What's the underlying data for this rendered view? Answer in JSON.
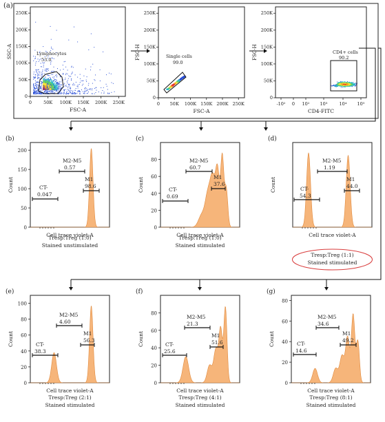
{
  "figure_label": "(a)",
  "colors": {
    "histogram_fill": "#f6b57a",
    "histogram_stroke": "#e0893c",
    "ellipse": "#d83a3a"
  },
  "chart_data": [
    {
      "id": "a1",
      "type": "scatter",
      "xlabel": "FSC-A",
      "ylabel": "SSC-A",
      "xticks": [
        "0",
        "50K",
        "100K",
        "150K",
        "200K",
        "250K"
      ],
      "yticks": [
        "0",
        "50K",
        "100K",
        "150K",
        "200K",
        "250K"
      ],
      "xlim": [
        0,
        270
      ],
      "ylim": [
        0,
        270
      ],
      "gate": {
        "name": "Lymphocytes",
        "value": "53.0"
      },
      "density_center": [
        35,
        30
      ]
    },
    {
      "id": "a2",
      "type": "scatter",
      "xlabel": "FSC-A",
      "ylabel": "FSC-H",
      "xticks": [
        "0",
        "50K",
        "100K",
        "150K",
        "200K",
        "250K"
      ],
      "yticks": [
        "0",
        "50K",
        "100K",
        "150K",
        "200K",
        "250K"
      ],
      "xlim": [
        0,
        270
      ],
      "ylim": [
        0,
        270
      ],
      "gate": {
        "name": "Single cells",
        "value": "99.0"
      }
    },
    {
      "id": "a3",
      "type": "scatter",
      "xlabel": "CD4-FITC",
      "ylabel": "FSC-H",
      "xticks": [
        "-10²",
        "0",
        "10²",
        "10³",
        "10⁴",
        "10⁵"
      ],
      "yticks": [
        "0",
        "50K",
        "100K",
        "150K",
        "200K",
        "250K"
      ],
      "gate": {
        "name": "CD4+ cells",
        "value": "90.2"
      }
    },
    {
      "id": "b",
      "panel": "(b)",
      "type": "area",
      "xlabel": "Cell trace violet-A",
      "ylabel": "Count",
      "yticks": [
        "0",
        "50",
        "100",
        "150",
        "200"
      ],
      "ylim": [
        0,
        220
      ],
      "peaks": [
        {
          "x": 0.77,
          "h": 205,
          "w": 0.022
        }
      ],
      "gates": [
        {
          "label": "CT-",
          "value": "0.047"
        },
        {
          "label": "M2-M5",
          "value": "0.57"
        },
        {
          "label": "M1",
          "value": "98.6"
        }
      ],
      "caption": [
        "Tresp:Treg (1:0)",
        "Stained unstimulated"
      ]
    },
    {
      "id": "c",
      "panel": "(c)",
      "type": "area",
      "xlabel": "Cell trace violet-A",
      "ylabel": "Count",
      "yticks": [
        "0",
        "20",
        "40",
        "60",
        "80"
      ],
      "ylim": [
        0,
        100
      ],
      "peaks": [
        {
          "x": 0.52,
          "h": 14,
          "w": 0.04
        },
        {
          "x": 0.6,
          "h": 38,
          "w": 0.035
        },
        {
          "x": 0.66,
          "h": 52,
          "w": 0.03
        },
        {
          "x": 0.72,
          "h": 66,
          "w": 0.025
        },
        {
          "x": 0.78,
          "h": 82,
          "w": 0.02
        },
        {
          "x": 0.83,
          "h": 45,
          "w": 0.02
        }
      ],
      "gates": [
        {
          "label": "CT-",
          "value": "0.69"
        },
        {
          "label": "M2-M5",
          "value": "60.7"
        },
        {
          "label": "M1",
          "value": "37.6"
        }
      ],
      "caption": [
        "Tresp:Treg (1:0)",
        "Stained stimulated"
      ]
    },
    {
      "id": "d",
      "panel": "(d)",
      "type": "area",
      "xlabel": "Cell trace violet-A",
      "ylabel": "Count",
      "yticks": [],
      "ylim": [
        0,
        100
      ],
      "peaks": [
        {
          "x": 0.2,
          "h": 88,
          "w": 0.025
        },
        {
          "x": 0.7,
          "h": 85,
          "w": 0.025
        }
      ],
      "gates": [
        {
          "label": "CT-",
          "value": "54.3"
        },
        {
          "label": "M2-M5",
          "value": "1.19"
        },
        {
          "label": "M1",
          "value": "44.0"
        }
      ],
      "caption": [
        "Tresp:Treg (1:1)",
        "Stained stimulated"
      ]
    },
    {
      "id": "e",
      "panel": "(e)",
      "type": "area",
      "xlabel": "Cell trace violet-A",
      "ylabel": "Count",
      "yticks": [
        "0",
        "20",
        "40",
        "60",
        "80",
        "100"
      ],
      "ylim": [
        0,
        110
      ],
      "peaks": [
        {
          "x": 0.3,
          "h": 38,
          "w": 0.03
        },
        {
          "x": 0.77,
          "h": 97,
          "w": 0.022
        }
      ],
      "gates": [
        {
          "label": "CT-",
          "value": "38.3"
        },
        {
          "label": "M2-M5",
          "value": "4.60"
        },
        {
          "label": "M1",
          "value": "56.3"
        }
      ],
      "caption": [
        "Tresp:Treg (2:1)",
        "Stained stimulated"
      ]
    },
    {
      "id": "f",
      "panel": "(f)",
      "type": "area",
      "xlabel": "Cell trace violet-A",
      "ylabel": "Count",
      "yticks": [
        "0",
        "20",
        "40",
        "60",
        "80"
      ],
      "ylim": [
        0,
        100
      ],
      "peaks": [
        {
          "x": 0.32,
          "h": 30,
          "w": 0.035
        },
        {
          "x": 0.62,
          "h": 20,
          "w": 0.03
        },
        {
          "x": 0.7,
          "h": 38,
          "w": 0.028
        },
        {
          "x": 0.76,
          "h": 60,
          "w": 0.022
        },
        {
          "x": 0.82,
          "h": 86,
          "w": 0.02
        }
      ],
      "gates": [
        {
          "label": "CT-",
          "value": "25.6"
        },
        {
          "label": "M2-M5",
          "value": "21.3"
        },
        {
          "label": "M1",
          "value": "51.6"
        }
      ],
      "caption": [
        "Tresp:Treg (4:1)",
        "Stained stimulated"
      ]
    },
    {
      "id": "g",
      "panel": "(g)",
      "type": "area",
      "xlabel": "Cell trace violet-A",
      "ylabel": "Count",
      "yticks": [
        "0",
        "20",
        "40",
        "60",
        "80"
      ],
      "ylim": [
        0,
        85
      ],
      "peaks": [
        {
          "x": 0.3,
          "h": 14,
          "w": 0.03
        },
        {
          "x": 0.56,
          "h": 14,
          "w": 0.03
        },
        {
          "x": 0.64,
          "h": 26,
          "w": 0.028
        },
        {
          "x": 0.71,
          "h": 44,
          "w": 0.025
        },
        {
          "x": 0.78,
          "h": 66,
          "w": 0.022
        },
        {
          "x": 0.84,
          "h": 40,
          "w": 0.02
        }
      ],
      "gates": [
        {
          "label": "CT-",
          "value": "14.6"
        },
        {
          "label": "M2-M5",
          "value": "34.6"
        },
        {
          "label": "M1",
          "value": "49.2"
        }
      ],
      "caption": [
        "Tresp:Treg (8:1)",
        "Stained stimulated"
      ]
    }
  ]
}
